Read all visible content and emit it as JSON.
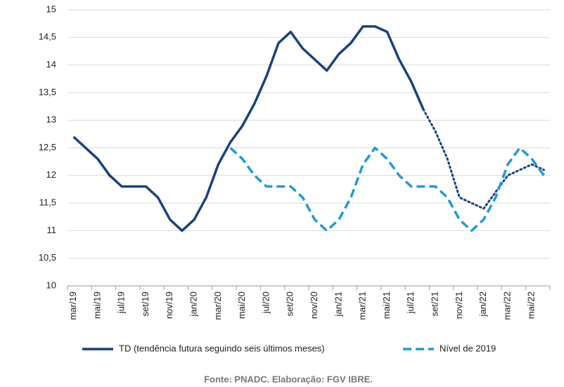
{
  "chart_data": {
    "type": "line",
    "categories": [
      "mar/19",
      null,
      "mai/19",
      null,
      "jul/19",
      null,
      "set/19",
      null,
      "nov/19",
      null,
      "jan/20",
      null,
      "mar/20",
      null,
      "mai/20",
      null,
      "jul/20",
      null,
      "set/20",
      null,
      "nov/20",
      null,
      "jan/21",
      null,
      "mar/21",
      null,
      "mai/21",
      null,
      "jul/21",
      null,
      "set/21",
      null,
      "nov/21",
      null,
      "jan/22",
      null,
      "mar/22",
      null,
      "mai/22",
      null
    ],
    "series": [
      {
        "name": "TD (tendência futura seguindo seis últimos meses)",
        "color": "#17427f",
        "style": "solid",
        "values": [
          12.7,
          12.5,
          12.3,
          12.0,
          11.8,
          11.8,
          11.8,
          11.6,
          11.2,
          11.0,
          11.2,
          11.6,
          12.2,
          12.6,
          12.9,
          13.3,
          13.8,
          14.4,
          14.6,
          14.3,
          14.1,
          13.9,
          14.2,
          14.4,
          14.7,
          14.7,
          14.6,
          14.1,
          13.7,
          13.2,
          null,
          null,
          null,
          null,
          null,
          null,
          null,
          null,
          null,
          null
        ]
      },
      {
        "color": "#17427f",
        "style": "dotted",
        "values": [
          null,
          null,
          null,
          null,
          null,
          null,
          null,
          null,
          null,
          null,
          null,
          null,
          null,
          null,
          null,
          null,
          null,
          null,
          null,
          null,
          null,
          null,
          null,
          null,
          null,
          null,
          null,
          null,
          null,
          13.2,
          12.8,
          12.3,
          11.6,
          11.5,
          11.4,
          11.7,
          12.0,
          12.1,
          12.2,
          12.1
        ]
      },
      {
        "name": "Nível de 2019",
        "color": "#1e9bd7",
        "style": "dashed",
        "values": [
          null,
          null,
          null,
          null,
          null,
          null,
          null,
          null,
          null,
          null,
          null,
          null,
          null,
          12.5,
          12.3,
          12.0,
          11.8,
          11.8,
          11.8,
          11.6,
          11.2,
          11.0,
          11.2,
          11.6,
          12.2,
          12.5,
          12.3,
          12.0,
          11.8,
          11.8,
          11.8,
          11.6,
          11.2,
          11.0,
          11.2,
          11.6,
          12.2,
          12.5,
          12.3,
          12.0
        ]
      }
    ],
    "ylim": [
      10,
      15
    ],
    "yticks": [
      10,
      {
        "value": 10.5,
        "label": "10,5"
      },
      11,
      {
        "value": 11.5,
        "label": "11,5"
      },
      12,
      {
        "value": 12.5,
        "label": "12,5"
      },
      13,
      {
        "value": 13.5,
        "label": "13,5"
      },
      14,
      {
        "value": 14.5,
        "label": "14,5"
      },
      15
    ],
    "grid": true,
    "legend": "bottom",
    "source": "Fonte: PNADC. Elaboração: FGV IBRE."
  }
}
